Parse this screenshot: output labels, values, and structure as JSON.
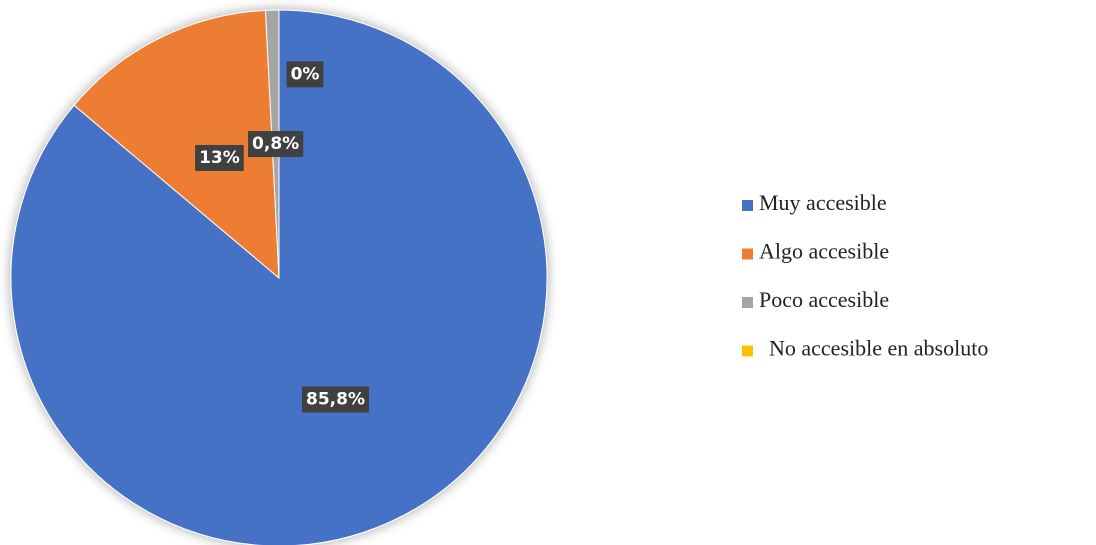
{
  "chart_data": {
    "type": "pie",
    "categories": [
      "Muy accesible",
      "Algo accesible",
      "Poco accesible",
      "No accesible en absoluto"
    ],
    "values": [
      85.8,
      13,
      0.8,
      0
    ],
    "value_labels": [
      "85,8%",
      "13%",
      "0,8%",
      "0%"
    ],
    "colors": [
      "#4472c4",
      "#ed7d31",
      "#a5a5a5",
      "#ffc000"
    ],
    "legend": "right"
  }
}
